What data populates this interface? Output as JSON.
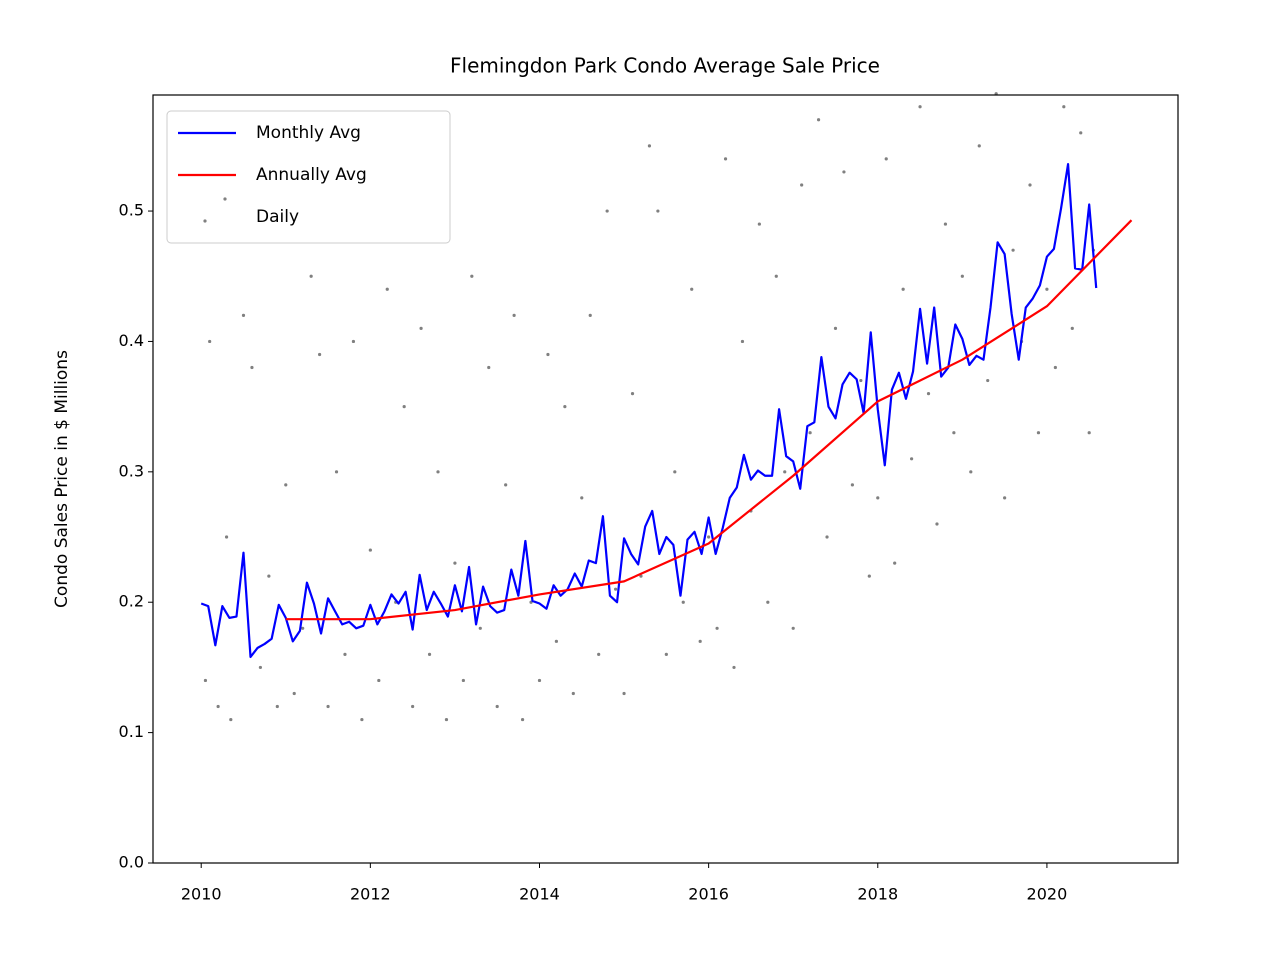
{
  "chart_data": {
    "type": "line",
    "title": "Flemingdon Park Condo Average Sale Price",
    "ylabel": "Condo Sales Price in $ Millions",
    "xlim": [
      2009.43,
      2021.55
    ],
    "ylim": [
      0,
      0.589
    ],
    "xticks": [
      2010,
      2012,
      2014,
      2016,
      2018,
      2020
    ],
    "yticks": [
      {
        "value": 0,
        "label": "0.0"
      },
      0.1,
      0.2,
      0.3,
      0.4,
      0.5
    ],
    "legend": "upper left",
    "series": [
      {
        "name": "Monthly Avg",
        "type": "line",
        "color": "#0000ff",
        "x": [
          2010,
          2010.083,
          2010.167,
          2010.25,
          2010.333,
          2010.417,
          2010.5,
          2010.583,
          2010.667,
          2010.75,
          2010.833,
          2010.917,
          2011,
          2011.083,
          2011.167,
          2011.25,
          2011.333,
          2011.417,
          2011.5,
          2011.583,
          2011.667,
          2011.75,
          2011.833,
          2011.917,
          2012,
          2012.083,
          2012.167,
          2012.25,
          2012.333,
          2012.417,
          2012.5,
          2012.583,
          2012.667,
          2012.75,
          2012.833,
          2012.917,
          2013,
          2013.083,
          2013.167,
          2013.25,
          2013.333,
          2013.417,
          2013.5,
          2013.583,
          2013.667,
          2013.75,
          2013.833,
          2013.917,
          2014,
          2014.083,
          2014.167,
          2014.25,
          2014.333,
          2014.417,
          2014.5,
          2014.583,
          2014.667,
          2014.75,
          2014.833,
          2014.917,
          2015,
          2015.083,
          2015.167,
          2015.25,
          2015.333,
          2015.417,
          2015.5,
          2015.583,
          2015.667,
          2015.75,
          2015.833,
          2015.917,
          2016,
          2016.083,
          2016.167,
          2016.25,
          2016.333,
          2016.417,
          2016.5,
          2016.583,
          2016.667,
          2016.75,
          2016.833,
          2016.917,
          2017,
          2017.083,
          2017.167,
          2017.25,
          2017.333,
          2017.417,
          2017.5,
          2017.583,
          2017.667,
          2017.75,
          2017.833,
          2017.917,
          2018,
          2018.083,
          2018.167,
          2018.25,
          2018.333,
          2018.417,
          2018.5,
          2018.583,
          2018.667,
          2018.75,
          2018.833,
          2018.917,
          2019,
          2019.083,
          2019.167,
          2019.25,
          2019.333,
          2019.417,
          2019.5,
          2019.583,
          2019.667,
          2019.75,
          2019.833,
          2019.917,
          2020,
          2020.083,
          2020.167,
          2020.25,
          2020.333,
          2020.417,
          2020.5,
          2020.583
        ],
        "values": [
          0.199,
          0.197,
          0.167,
          0.197,
          0.188,
          0.189,
          0.238,
          0.158,
          0.165,
          0.168,
          0.172,
          0.198,
          0.188,
          0.17,
          0.178,
          0.215,
          0.199,
          0.176,
          0.203,
          0.193,
          0.183,
          0.185,
          0.18,
          0.182,
          0.198,
          0.183,
          0.193,
          0.206,
          0.199,
          0.208,
          0.179,
          0.221,
          0.194,
          0.208,
          0.199,
          0.189,
          0.213,
          0.193,
          0.227,
          0.183,
          0.212,
          0.197,
          0.192,
          0.194,
          0.225,
          0.205,
          0.247,
          0.201,
          0.199,
          0.195,
          0.213,
          0.205,
          0.21,
          0.222,
          0.212,
          0.232,
          0.23,
          0.266,
          0.205,
          0.2,
          0.249,
          0.237,
          0.229,
          0.258,
          0.27,
          0.237,
          0.25,
          0.244,
          0.205,
          0.248,
          0.254,
          0.237,
          0.265,
          0.237,
          0.257,
          0.28,
          0.288,
          0.313,
          0.294,
          0.301,
          0.297,
          0.297,
          0.348,
          0.312,
          0.308,
          0.287,
          0.335,
          0.338,
          0.388,
          0.35,
          0.341,
          0.367,
          0.376,
          0.371,
          0.345,
          0.407,
          0.348,
          0.305,
          0.363,
          0.376,
          0.356,
          0.377,
          0.425,
          0.383,
          0.426,
          0.373,
          0.38,
          0.413,
          0.402,
          0.382,
          0.389,
          0.386,
          0.426,
          0.476,
          0.467,
          0.421,
          0.386,
          0.426,
          0.433,
          0.443,
          0.465,
          0.471,
          0.502,
          0.536,
          0.456,
          0.455,
          0.505,
          0.441
        ]
      },
      {
        "name": "Annually Avg",
        "type": "line",
        "color": "#ff0000",
        "x": [
          2011,
          2012,
          2013,
          2014,
          2015,
          2016,
          2017,
          2018,
          2019,
          2020,
          2021
        ],
        "values": [
          0.187,
          0.187,
          0.194,
          0.206,
          0.216,
          0.245,
          0.297,
          0.354,
          0.386,
          0.427,
          0.493
        ]
      },
      {
        "name": "Daily",
        "type": "scatter",
        "color": "#808080",
        "x": [
          2010.05,
          2010.1,
          2010.2,
          2010.3,
          2010.35,
          2010.5,
          2010.6,
          2010.7,
          2010.8,
          2010.9,
          2011.0,
          2011.1,
          2011.2,
          2011.3,
          2011.4,
          2011.5,
          2011.6,
          2011.7,
          2011.8,
          2011.9,
          2012.0,
          2012.1,
          2012.2,
          2012.3,
          2012.4,
          2012.5,
          2012.6,
          2012.7,
          2012.8,
          2012.9,
          2013.0,
          2013.1,
          2013.2,
          2013.3,
          2013.4,
          2013.5,
          2013.6,
          2013.7,
          2013.8,
          2013.9,
          2014.0,
          2014.1,
          2014.2,
          2014.3,
          2014.4,
          2014.5,
          2014.6,
          2014.7,
          2014.8,
          2014.9,
          2015.0,
          2015.1,
          2015.2,
          2015.3,
          2015.4,
          2015.5,
          2015.6,
          2015.7,
          2015.8,
          2015.9,
          2016.0,
          2016.1,
          2016.2,
          2016.3,
          2016.4,
          2016.5,
          2016.6,
          2016.7,
          2016.8,
          2016.9,
          2017.0,
          2017.1,
          2017.2,
          2017.3,
          2017.4,
          2017.5,
          2017.6,
          2017.7,
          2017.8,
          2017.9,
          2018.0,
          2018.1,
          2018.2,
          2018.3,
          2018.4,
          2018.5,
          2018.6,
          2018.7,
          2018.8,
          2018.9,
          2019.0,
          2019.1,
          2019.2,
          2019.3,
          2019.4,
          2019.5,
          2019.6,
          2019.7,
          2019.8,
          2019.9,
          2020.0,
          2020.1,
          2020.2,
          2020.3,
          2020.4,
          2020.5,
          2020.55
        ],
        "values": [
          0.14,
          0.4,
          0.12,
          0.25,
          0.11,
          0.42,
          0.38,
          0.15,
          0.22,
          0.12,
          0.29,
          0.13,
          0.18,
          0.45,
          0.39,
          0.12,
          0.3,
          0.16,
          0.4,
          0.11,
          0.24,
          0.14,
          0.44,
          0.2,
          0.35,
          0.12,
          0.41,
          0.16,
          0.3,
          0.11,
          0.23,
          0.14,
          0.45,
          0.18,
          0.38,
          0.12,
          0.29,
          0.42,
          0.11,
          0.2,
          0.14,
          0.39,
          0.17,
          0.35,
          0.13,
          0.28,
          0.42,
          0.16,
          0.5,
          0.21,
          0.13,
          0.36,
          0.22,
          0.55,
          0.5,
          0.16,
          0.3,
          0.2,
          0.44,
          0.17,
          0.25,
          0.18,
          0.54,
          0.15,
          0.4,
          0.27,
          0.49,
          0.2,
          0.45,
          0.3,
          0.18,
          0.52,
          0.33,
          0.57,
          0.25,
          0.41,
          0.53,
          0.29,
          0.37,
          0.22,
          0.28,
          0.54,
          0.23,
          0.44,
          0.31,
          0.58,
          0.36,
          0.26,
          0.49,
          0.33,
          0.45,
          0.3,
          0.55,
          0.37,
          0.59,
          0.28,
          0.47,
          0.4,
          0.52,
          0.33,
          0.44,
          0.38,
          0.58,
          0.41,
          0.56,
          0.33,
          0.47
        ]
      }
    ]
  }
}
